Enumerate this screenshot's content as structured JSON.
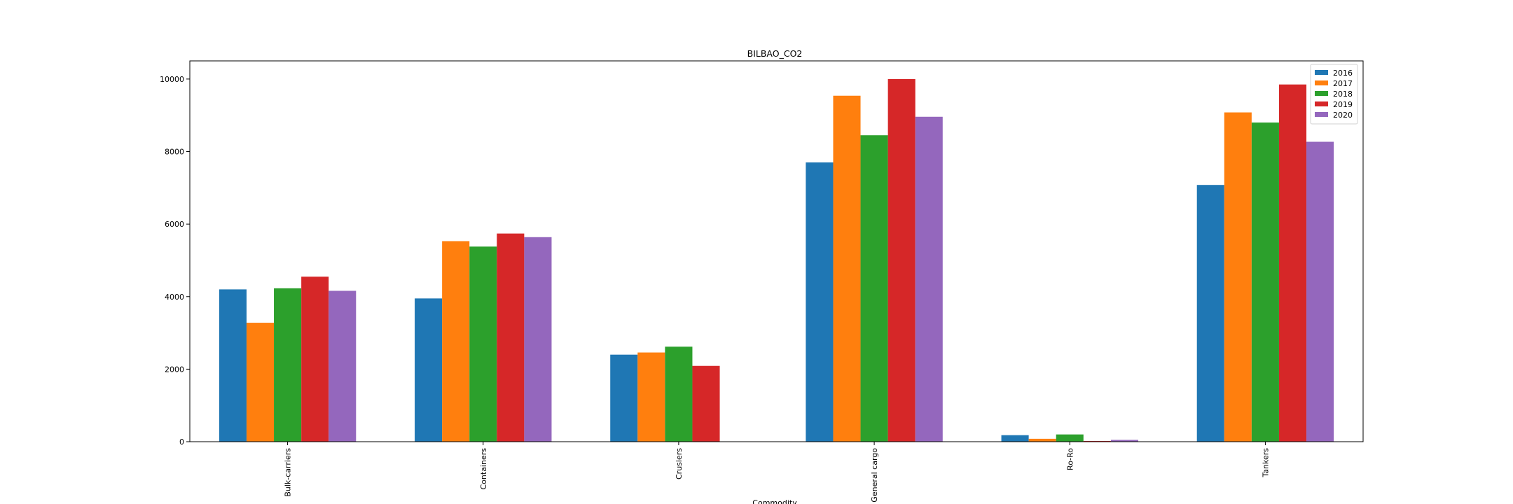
{
  "chart_data": {
    "type": "bar",
    "title": "BILBAO_CO2",
    "xlabel": "Commodity",
    "ylabel": "",
    "categories": [
      "Bulk-carriers",
      "Containers",
      "Crusiers",
      "General cargo",
      "Ro-Ro",
      "Tankers"
    ],
    "series": [
      {
        "name": "2016",
        "color": "#1f77b4",
        "values": [
          4200,
          3950,
          2400,
          7700,
          180,
          7080
        ]
      },
      {
        "name": "2017",
        "color": "#ff7f0e",
        "values": [
          3280,
          5530,
          2460,
          9540,
          80,
          9080
        ]
      },
      {
        "name": "2018",
        "color": "#2ca02c",
        "values": [
          4230,
          5380,
          2620,
          8450,
          200,
          8800
        ]
      },
      {
        "name": "2019",
        "color": "#d62728",
        "values": [
          4550,
          5740,
          2090,
          10000,
          20,
          9850
        ]
      },
      {
        "name": "2020",
        "color": "#9467bd",
        "values": [
          4160,
          5640,
          0,
          8960,
          50,
          8270
        ]
      }
    ],
    "ylim": [
      0,
      10500
    ],
    "yticks": [
      0,
      2000,
      4000,
      6000,
      8000,
      10000
    ],
    "legend_position": "top-right",
    "grid": false
  }
}
